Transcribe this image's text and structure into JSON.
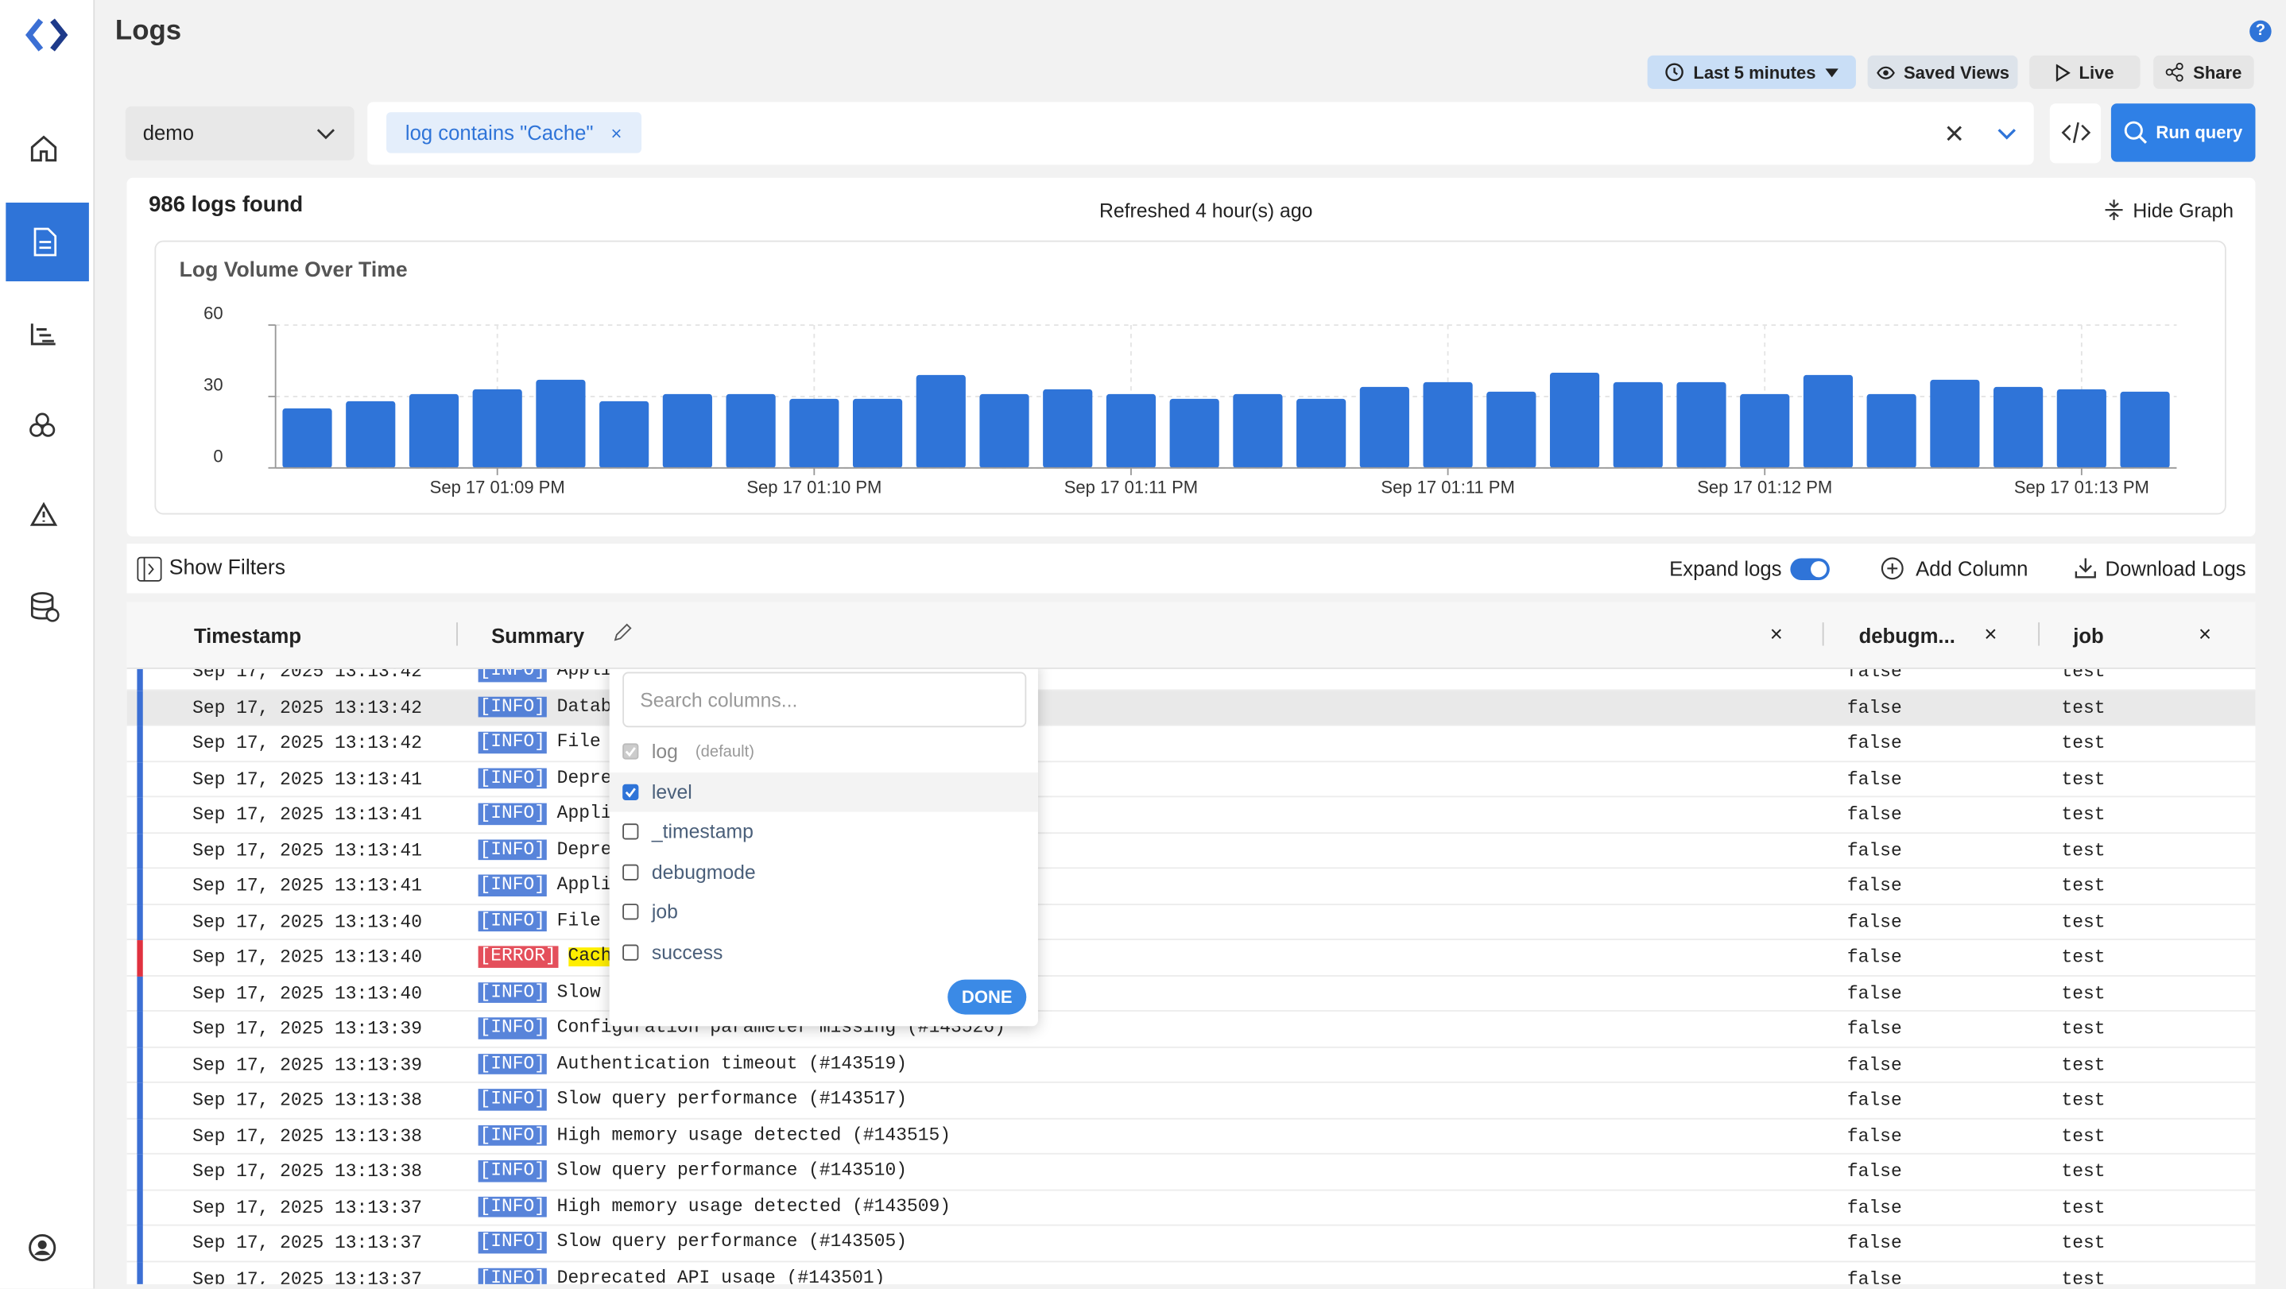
{
  "header": {
    "title": "Logs",
    "help": "?"
  },
  "toolbar": {
    "time_range": "Last 5 minutes",
    "saved_views": "Saved Views",
    "live": "Live",
    "share": "Share"
  },
  "query": {
    "stream": "demo",
    "filter_chip": "log contains \"Cache\"",
    "chip_close": "×",
    "run": "Run query"
  },
  "results": {
    "count": "986 logs found",
    "refreshed": "Refreshed 4 hour(s) ago",
    "hide_graph": "Hide Graph"
  },
  "chart_data": {
    "type": "bar",
    "title": "Log Volume Over Time",
    "categories": [
      null,
      null,
      null,
      "Sep 17 01:09 PM",
      null,
      null,
      null,
      null,
      "Sep 17 01:10 PM",
      null,
      null,
      null,
      null,
      "Sep 17 01:11 PM",
      null,
      null,
      null,
      null,
      "Sep 17 01:11 PM",
      null,
      null,
      null,
      null,
      "Sep 17 01:12 PM",
      null,
      null,
      null,
      null,
      "Sep 17 01:13 PM",
      null
    ],
    "values": [
      25,
      28,
      31,
      33,
      37,
      28,
      31,
      31,
      29,
      29,
      39,
      31,
      33,
      31,
      29,
      31,
      29,
      34,
      36,
      32,
      40,
      36,
      36,
      31,
      39,
      31,
      37,
      34,
      33,
      32
    ],
    "color": "#2f74d8",
    "ylim": [
      0,
      60
    ],
    "yticks": [
      0,
      30,
      60
    ],
    "grid": true
  },
  "table_toolbar": {
    "show_filters": "Show Filters",
    "expand_logs": "Expand logs",
    "expand_on": true,
    "add_column": "Add Column",
    "download": "Download Logs"
  },
  "table": {
    "columns": [
      "Timestamp",
      "Summary",
      "debugm...",
      "job"
    ],
    "close": "×",
    "rows": [
      {
        "timestamp": "Sep 17, 2025 13:13:42",
        "level": "[INFO]",
        "summary": "Applic",
        "debugmode": "false",
        "job": "test",
        "color": "#3b6fd4"
      },
      {
        "timestamp": "Sep 17, 2025 13:13:42",
        "level": "[INFO]",
        "summary": "Databa",
        "debugmode": "false",
        "job": "test",
        "color": "#3b6fd4",
        "selected": true
      },
      {
        "timestamp": "Sep 17, 2025 13:13:42",
        "level": "[INFO]",
        "summary": "File p",
        "debugmode": "false",
        "job": "test",
        "color": "#3b6fd4"
      },
      {
        "timestamp": "Sep 17, 2025 13:13:41",
        "level": "[INFO]",
        "summary": "Deprec",
        "debugmode": "false",
        "job": "test",
        "color": "#3b6fd4"
      },
      {
        "timestamp": "Sep 17, 2025 13:13:41",
        "level": "[INFO]",
        "summary": "Applic",
        "debugmode": "false",
        "job": "test",
        "color": "#3b6fd4"
      },
      {
        "timestamp": "Sep 17, 2025 13:13:41",
        "level": "[INFO]",
        "summary": "Deprec",
        "debugmode": "false",
        "job": "test",
        "color": "#3b6fd4"
      },
      {
        "timestamp": "Sep 17, 2025 13:13:41",
        "level": "[INFO]",
        "summary": "Applic",
        "debugmode": "false",
        "job": "test",
        "color": "#3b6fd4"
      },
      {
        "timestamp": "Sep 17, 2025 13:13:40",
        "level": "[INFO]",
        "summary": "File p",
        "debugmode": "false",
        "job": "test",
        "color": "#3b6fd4"
      },
      {
        "timestamp": "Sep 17, 2025 13:13:40",
        "level": "[ERROR]",
        "summary": "Cache",
        "debugmode": "false",
        "job": "test",
        "color": "#e0313f",
        "highlighted": true
      },
      {
        "timestamp": "Sep 17, 2025 13:13:40",
        "level": "[INFO]",
        "summary": "Slow c",
        "debugmode": "false",
        "job": "test",
        "color": "#3b6fd4"
      },
      {
        "timestamp": "Sep 17, 2025 13:13:39",
        "level": "[INFO]",
        "summary": "Configuration parameter missing (#143526)",
        "debugmode": "false",
        "job": "test",
        "color": "#3b6fd4"
      },
      {
        "timestamp": "Sep 17, 2025 13:13:39",
        "level": "[INFO]",
        "summary": "Authentication timeout (#143519)",
        "debugmode": "false",
        "job": "test",
        "color": "#3b6fd4"
      },
      {
        "timestamp": "Sep 17, 2025 13:13:38",
        "level": "[INFO]",
        "summary": "Slow query performance (#143517)",
        "debugmode": "false",
        "job": "test",
        "color": "#3b6fd4"
      },
      {
        "timestamp": "Sep 17, 2025 13:13:38",
        "level": "[INFO]",
        "summary": "High memory usage detected (#143515)",
        "debugmode": "false",
        "job": "test",
        "color": "#3b6fd4"
      },
      {
        "timestamp": "Sep 17, 2025 13:13:38",
        "level": "[INFO]",
        "summary": "Slow query performance (#143510)",
        "debugmode": "false",
        "job": "test",
        "color": "#3b6fd4"
      },
      {
        "timestamp": "Sep 17, 2025 13:13:37",
        "level": "[INFO]",
        "summary": "High memory usage detected (#143509)",
        "debugmode": "false",
        "job": "test",
        "color": "#3b6fd4"
      },
      {
        "timestamp": "Sep 17, 2025 13:13:37",
        "level": "[INFO]",
        "summary": "Slow query performance (#143505)",
        "debugmode": "false",
        "job": "test",
        "color": "#3b6fd4"
      },
      {
        "timestamp": "Sep 17, 2025 13:13:37",
        "level": "[INFO]",
        "summary": "Deprecated API usage (#143501)",
        "debugmode": "false",
        "job": "test",
        "color": "#3b6fd4"
      }
    ]
  },
  "column_picker": {
    "placeholder": "Search columns...",
    "items": [
      {
        "label": "log",
        "note": "(default)",
        "checked": true,
        "disabled": true
      },
      {
        "label": "level",
        "checked": true
      },
      {
        "label": "_timestamp",
        "checked": false
      },
      {
        "label": "debugmode",
        "checked": false
      },
      {
        "label": "job",
        "checked": false
      },
      {
        "label": "success",
        "checked": false
      }
    ],
    "done": "DONE"
  }
}
